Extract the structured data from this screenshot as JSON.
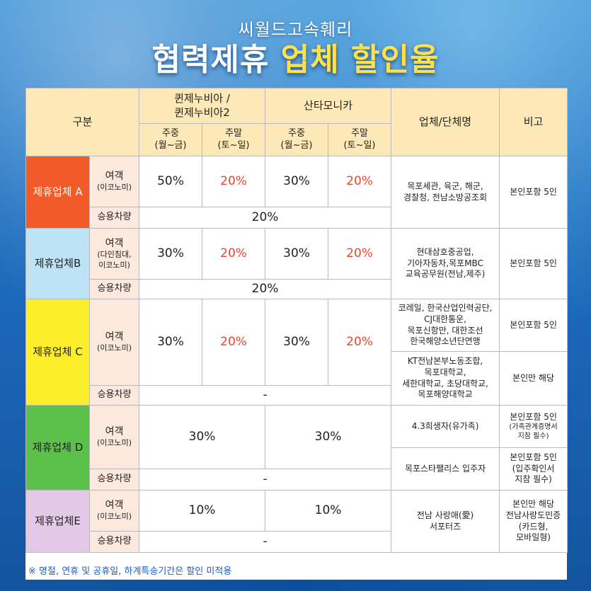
{
  "header": {
    "subtitle": "씨월드고속훼리",
    "title_white": "협력제휴",
    "title_yellow": "업체 할인율"
  },
  "columns": {
    "category": "구분",
    "ship1": "퀸제누비아 /\n퀸제누비아2",
    "ship2": "산타모니카",
    "weekday": "주중\n(월~금)",
    "weekend": "주말\n(토~일)",
    "company": "업체/단체명",
    "remarks": "비고"
  },
  "groups": {
    "a": {
      "name": "제휴업체 A",
      "passenger": "여객",
      "passenger_class": "(이코노미)",
      "ship1_weekday": "50%",
      "ship1_weekend": "20%",
      "ship2_weekday": "30%",
      "ship2_weekend": "20%",
      "car": "승용차량",
      "car_rate": "20%",
      "company": "목포세관, 육군, 해군,\n경찰청, 전남소방공조회",
      "remarks": "본인포함 5인"
    },
    "b": {
      "name": "제휴업체B",
      "passenger": "여객",
      "passenger_class": "(다인침대,\n이코노미)",
      "ship1_weekday": "30%",
      "ship1_weekend": "20%",
      "ship2_weekday": "30%",
      "ship2_weekend": "20%",
      "car": "승용차량",
      "car_rate": "20%",
      "company": "현대삼호중공업,\n기아자동차,목포MBC\n교육공무원(전남,제주)",
      "remarks": "본인포함 5인"
    },
    "c": {
      "name": "제휴업체 C",
      "passenger": "여객",
      "passenger_class": "(이코노미)",
      "ship1_weekday": "30%",
      "ship1_weekend": "20%",
      "ship2_weekday": "30%",
      "ship2_weekend": "20%",
      "car": "승용차량",
      "car_rate": "-",
      "company1": "코레일, 한국산업인력공단,\nCJ대한통운,\n목포신항만, 대한조선\n한국해양소년단연맹",
      "remarks1": "본인포함 5인",
      "company2": "KT전남본부노동조합,\n목포대학교,\n세한대학교, 초당대학교,\n목포해양대학교",
      "remarks2": "본인만 해당"
    },
    "d": {
      "name": "제휴업체 D",
      "passenger": "여객",
      "passenger_class": "(이코노미)",
      "ship1_rate": "30%",
      "ship2_rate": "30%",
      "car": "승용차량",
      "car_rate": "-",
      "company1": "4.3희생자(유가족)",
      "remarks1": "본인포함 5인",
      "remarks1_note": "(가족관계증명서\n지참 필수)",
      "company2": "목포스타팰리스 입주자",
      "remarks2": "본인포함 5인\n(입주확인서\n지참 필수)"
    },
    "e": {
      "name": "제휴업체E",
      "passenger": "여객",
      "passenger_class": "(이코노미)",
      "ship1_rate": "10%",
      "ship2_rate": "10%",
      "car": "승용차량",
      "car_rate": "-",
      "company": "전남 사랑애(愛)\n서포터즈",
      "remarks": "본인만 해당\n전남사랑도민증\n(카드형,\n모바일형)"
    }
  },
  "footnote": "※ 명절, 연휴 및 공휴일, 하계특송기간은 할인 미적용",
  "colors": {
    "header_bg": "#fde9b8",
    "group_a": "#f15b2a",
    "group_b": "#bde3f7",
    "group_c": "#fdee2b",
    "group_d": "#5cc04b",
    "group_e": "#e4c8e8",
    "subrow_bg": "#fde8de",
    "highlight_red": "#e8472f",
    "title_yellow": "#ffe14a"
  }
}
